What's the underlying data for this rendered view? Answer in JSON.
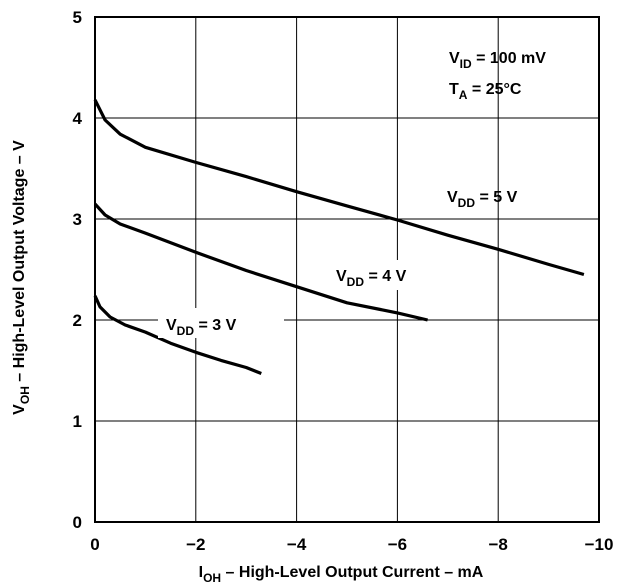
{
  "chart_data": {
    "type": "line",
    "xlabel": {
      "main": "I",
      "sub": "OH",
      "rest": " – High-Level Output Current – mA"
    },
    "ylabel": {
      "main": "V",
      "sub": "OH",
      "rest": " – High-Level Output Voltage – V"
    },
    "xlim": [
      0,
      -10
    ],
    "ylim": [
      0,
      5
    ],
    "x_ticks": [
      0,
      -2,
      -4,
      -6,
      -8,
      -10
    ],
    "x_tick_labels": [
      "0",
      "−2",
      "−4",
      "−6",
      "−8",
      "−10"
    ],
    "y_ticks": [
      0,
      1,
      2,
      3,
      4,
      5
    ],
    "y_tick_labels": [
      "0",
      "1",
      "2",
      "3",
      "4",
      "5"
    ],
    "grid": true,
    "conditions": [
      {
        "main": "V",
        "sub": "ID",
        "rest": " = 100 mV"
      },
      {
        "main": "T",
        "sub": "A",
        "rest": " = 25°C"
      }
    ],
    "series": [
      {
        "name": "VDD = 5 V",
        "label": {
          "main": "V",
          "sub": "DD",
          "rest": " = 5 V"
        },
        "x": [
          0,
          -0.2,
          -0.5,
          -1.0,
          -2.0,
          -3.0,
          -4.0,
          -5.0,
          -6.0,
          -7.0,
          -8.0,
          -9.0,
          -9.7
        ],
        "y": [
          4.18,
          3.98,
          3.84,
          3.71,
          3.56,
          3.42,
          3.27,
          3.13,
          2.99,
          2.84,
          2.7,
          2.55,
          2.45
        ]
      },
      {
        "name": "VDD = 4 V",
        "label": {
          "main": "V",
          "sub": "DD",
          "rest": " = 4 V"
        },
        "x": [
          0,
          -0.2,
          -0.5,
          -1.0,
          -2.0,
          -3.0,
          -4.0,
          -5.0,
          -6.0,
          -6.6
        ],
        "y": [
          3.15,
          3.04,
          2.95,
          2.86,
          2.67,
          2.49,
          2.33,
          2.17,
          2.07,
          2.0
        ]
      },
      {
        "name": "VDD = 3 V",
        "label": {
          "main": "V",
          "sub": "DD",
          "rest": " = 3 V"
        },
        "x": [
          0,
          -0.1,
          -0.3,
          -0.6,
          -1.0,
          -1.5,
          -2.0,
          -2.5,
          -3.0,
          -3.3
        ],
        "y": [
          2.24,
          2.13,
          2.03,
          1.95,
          1.88,
          1.77,
          1.68,
          1.6,
          1.53,
          1.47
        ]
      }
    ]
  }
}
